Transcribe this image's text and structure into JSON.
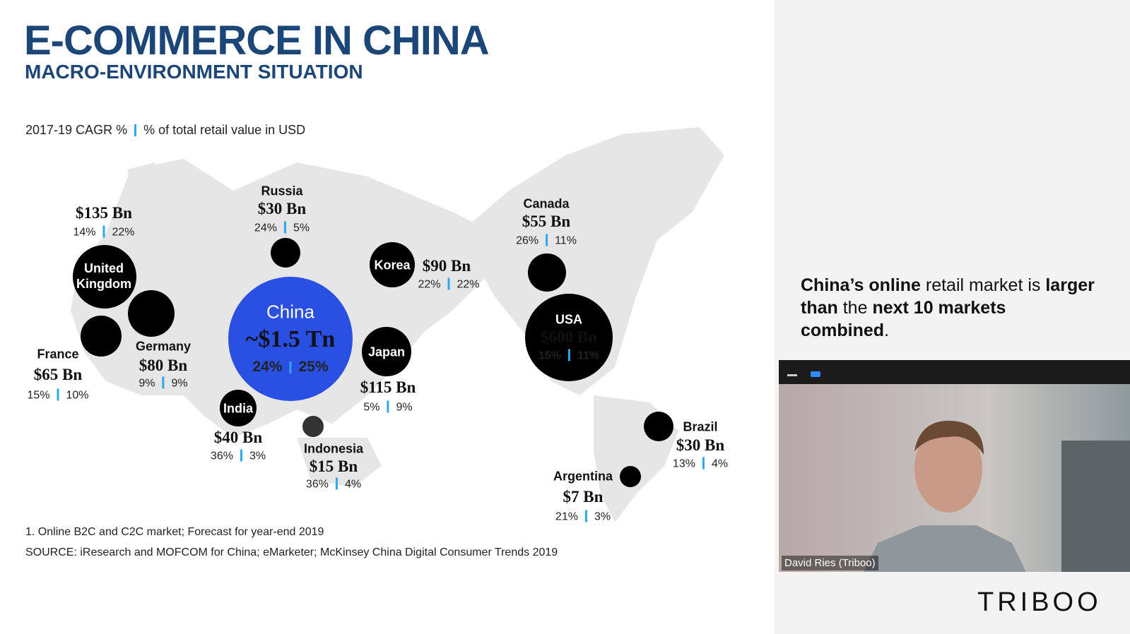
{
  "header": {
    "title": "E-COMMERCE IN CHINA",
    "subtitle": "MACRO-ENVIRONMENT SITUATION"
  },
  "legend": {
    "cagr": "2017-19 CAGR %",
    "share": "% of total retail value in USD"
  },
  "markets": [
    {
      "name": "United Kingdom",
      "value": "$135 Bn",
      "cagr": "14%",
      "share": "22%"
    },
    {
      "name": "France",
      "value": "$65 Bn",
      "cagr": "15%",
      "share": "10%"
    },
    {
      "name": "Germany",
      "value": "$80 Bn",
      "cagr": "9%",
      "share": "9%"
    },
    {
      "name": "Russia",
      "value": "$30 Bn",
      "cagr": "24%",
      "share": "5%"
    },
    {
      "name": "China",
      "value": "~$1.5 Tn",
      "cagr": "24%",
      "share": "25%"
    },
    {
      "name": "India",
      "value": "$40 Bn",
      "cagr": "36%",
      "share": "3%"
    },
    {
      "name": "Indonesia",
      "value": "$15 Bn",
      "cagr": "36%",
      "share": "4%"
    },
    {
      "name": "Korea",
      "value": "$90 Bn",
      "cagr": "22%",
      "share": "22%"
    },
    {
      "name": "Japan",
      "value": "$115 Bn",
      "cagr": "5%",
      "share": "9%"
    },
    {
      "name": "Canada",
      "value": "$55 Bn",
      "cagr": "26%",
      "share": "11%"
    },
    {
      "name": "USA",
      "value": "$600 Bn",
      "cagr": "15%",
      "share": "11%"
    },
    {
      "name": "Brazil",
      "value": "$30 Bn",
      "cagr": "13%",
      "share": "4%"
    },
    {
      "name": "Argentina",
      "value": "$7 Bn",
      "cagr": "21%",
      "share": "3%"
    }
  ],
  "footnotes": [
    "1. Online B2C and C2C market; Forecast for year-end 2019",
    "SOURCE: iResearch and MOFCOM for China; eMarketer; McKinsey China Digital Consumer Trends 2019"
  ],
  "side_note": [
    {
      "text": "China’s online",
      "bold": true
    },
    {
      "text": " retail market is ",
      "bold": false
    },
    {
      "text": "larger than",
      "bold": true
    },
    {
      "text": " the ",
      "bold": false
    },
    {
      "text": "next 10 markets combined",
      "bold": true
    },
    {
      "text": ".",
      "bold": false
    }
  ],
  "video": {
    "caption": "David Ries (Triboo)"
  },
  "logo": "TRIBOO"
}
